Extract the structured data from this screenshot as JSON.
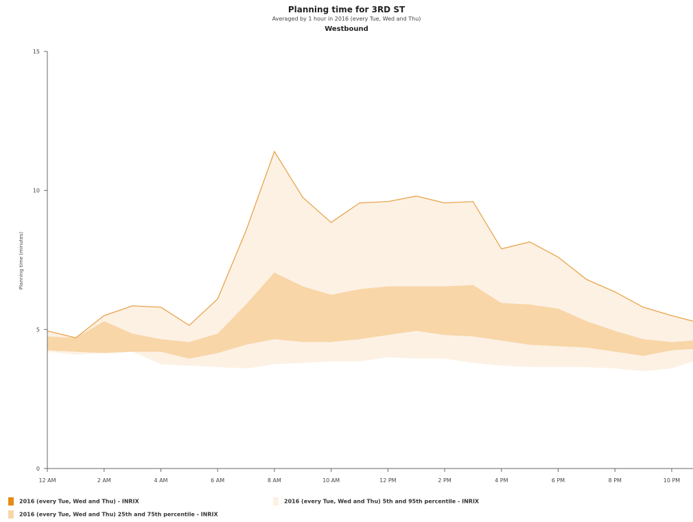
{
  "chart_data": {
    "type": "area",
    "title": "Planning time for 3RD ST",
    "subtitle": "Averaged by 1 hour in 2016 (every Tue, Wed and Thu)",
    "subtitle2": "Westbound",
    "xlabel": "",
    "ylabel": "Planning time (minutes)",
    "ylim": [
      0,
      15
    ],
    "yticks": [
      "0",
      "5",
      "10",
      "15"
    ],
    "xlim": [
      0,
      22.75
    ],
    "xticks": [
      {
        "h": 0,
        "label": "12 AM"
      },
      {
        "h": 2,
        "label": "2 AM"
      },
      {
        "h": 4,
        "label": "4 AM"
      },
      {
        "h": 6,
        "label": "6 AM"
      },
      {
        "h": 8,
        "label": "8 AM"
      },
      {
        "h": 10,
        "label": "10 AM"
      },
      {
        "h": 12,
        "label": "12 PM"
      },
      {
        "h": 14,
        "label": "2 PM"
      },
      {
        "h": 16,
        "label": "4 PM"
      },
      {
        "h": 18,
        "label": "6 PM"
      },
      {
        "h": 20,
        "label": "8 PM"
      },
      {
        "h": 22,
        "label": "10 PM"
      }
    ],
    "x": [
      0,
      1,
      2,
      3,
      4,
      5,
      6,
      7,
      8,
      9,
      10,
      11,
      12,
      13,
      14,
      15,
      16,
      17,
      18,
      19,
      20,
      21,
      22,
      22.75
    ],
    "series": [
      {
        "name": "2016 (every Tue, Wed and Thu) - INRIX",
        "type": "line",
        "values": [
          4.95,
          4.7,
          5.5,
          5.85,
          5.8,
          5.15,
          6.1,
          8.55,
          11.4,
          9.75,
          8.85,
          9.55,
          9.6,
          9.8,
          9.55,
          9.6,
          7.9,
          8.15,
          7.6,
          6.8,
          6.35,
          5.8,
          5.5,
          5.3
        ]
      },
      {
        "name": "2016 (every Tue, Wed and Thu) 5th and 95th percentile - INRIX",
        "type": "range",
        "low": [
          4.2,
          4.1,
          4.15,
          4.2,
          3.75,
          3.7,
          3.65,
          3.6,
          3.75,
          3.8,
          3.85,
          3.85,
          4.0,
          3.95,
          3.95,
          3.8,
          3.7,
          3.65,
          3.65,
          3.65,
          3.6,
          3.5,
          3.6,
          3.85
        ],
        "high": [
          4.95,
          4.7,
          5.5,
          5.85,
          5.8,
          5.15,
          6.1,
          8.55,
          11.4,
          9.75,
          8.85,
          9.55,
          9.6,
          9.8,
          9.55,
          9.6,
          7.9,
          8.15,
          7.6,
          6.8,
          6.35,
          5.8,
          5.5,
          5.3
        ]
      },
      {
        "name": "2016 (every Tue, Wed and Thu) 25th and 75th percentile - INRIX",
        "type": "range",
        "low": [
          4.25,
          4.2,
          4.15,
          4.2,
          4.2,
          3.95,
          4.15,
          4.45,
          4.65,
          4.55,
          4.55,
          4.65,
          4.8,
          4.95,
          4.8,
          4.75,
          4.6,
          4.45,
          4.4,
          4.35,
          4.2,
          4.05,
          4.25,
          4.3
        ],
        "high": [
          4.75,
          4.7,
          5.3,
          4.85,
          4.65,
          4.55,
          4.85,
          5.9,
          7.05,
          6.55,
          6.25,
          6.45,
          6.55,
          6.55,
          6.55,
          6.6,
          5.95,
          5.9,
          5.75,
          5.3,
          4.95,
          4.65,
          4.55,
          4.6
        ]
      }
    ],
    "colors": {
      "median_line": "#e8a34a",
      "band_5_95": "#fdf1e4",
      "band_25_75": "#f8d6a8",
      "median_swatch": "#e38d14",
      "axis": "#666666"
    },
    "grid": false,
    "legend_position": "bottom-left"
  }
}
